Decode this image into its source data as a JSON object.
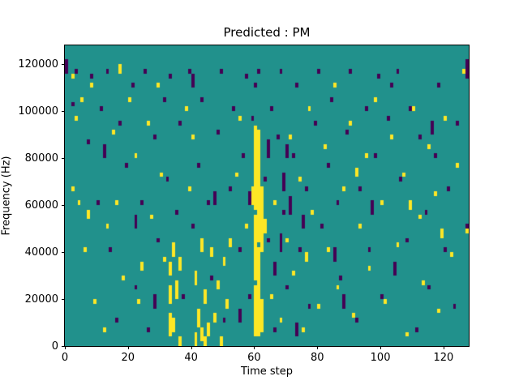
{
  "title": "Predicted : PM",
  "chart_data": {
    "type": "heatmap",
    "title": "Predicted : PM",
    "xlabel": "Time step",
    "ylabel": "Frequency (Hz)",
    "xlim": [
      0,
      128
    ],
    "ylim": [
      0,
      128000
    ],
    "xticks": [
      0,
      20,
      40,
      60,
      80,
      100,
      120
    ],
    "yticks": [
      0,
      20000,
      40000,
      60000,
      80000,
      100000,
      120000
    ],
    "time_steps": 128,
    "freq_bins": 64,
    "bin_height_hz": 2000,
    "grid": false,
    "legend": "none",
    "colors": {
      "background": "#21918c",
      "low": "#440154",
      "high": "#fde725",
      "figure_background": "#ffffff",
      "axes_edge": "#000000"
    },
    "value_levels": {
      "background": 1,
      "dark": 0,
      "yellow": 2
    },
    "yellow_runs": [
      [
        59,
        30,
        33
      ],
      [
        60,
        2,
        12
      ],
      [
        60,
        14,
        27
      ],
      [
        60,
        29,
        46
      ],
      [
        61,
        2,
        20
      ],
      [
        61,
        22,
        45
      ],
      [
        62,
        3,
        9
      ],
      [
        62,
        20,
        33
      ],
      [
        63,
        24,
        26
      ],
      [
        33,
        2,
        6
      ],
      [
        33,
        9,
        12
      ],
      [
        33,
        15,
        17
      ],
      [
        34,
        3,
        5
      ],
      [
        34,
        19,
        21
      ],
      [
        35,
        10,
        13
      ],
      [
        36,
        16,
        18
      ],
      [
        36,
        0,
        1
      ],
      [
        41,
        0,
        2
      ],
      [
        41,
        13,
        15
      ],
      [
        42,
        4,
        7
      ],
      [
        43,
        1,
        3
      ],
      [
        43,
        20,
        22
      ],
      [
        44,
        0,
        1
      ],
      [
        44,
        9,
        11
      ],
      [
        45,
        2,
        4
      ],
      [
        46,
        19,
        20
      ],
      [
        47,
        5,
        6
      ],
      [
        48,
        12,
        13
      ],
      [
        49,
        0,
        1
      ],
      [
        50,
        17,
        18
      ],
      [
        51,
        8,
        9
      ],
      [
        52,
        21,
        22
      ],
      [
        2,
        33,
        33
      ],
      [
        2,
        57,
        57
      ],
      [
        3,
        48,
        48
      ],
      [
        4,
        30,
        30
      ],
      [
        5,
        52,
        52
      ],
      [
        6,
        20,
        20
      ],
      [
        7,
        27,
        28
      ],
      [
        8,
        55,
        55
      ],
      [
        9,
        9,
        9
      ],
      [
        12,
        3,
        3
      ],
      [
        13,
        25,
        25
      ],
      [
        15,
        45,
        45
      ],
      [
        16,
        30,
        30
      ],
      [
        17,
        58,
        59
      ],
      [
        18,
        14,
        14
      ],
      [
        20,
        52,
        52
      ],
      [
        22,
        40,
        40
      ],
      [
        23,
        9,
        9
      ],
      [
        24,
        16,
        17
      ],
      [
        26,
        47,
        47
      ],
      [
        27,
        27,
        27
      ],
      [
        29,
        55,
        55
      ],
      [
        30,
        36,
        36
      ],
      [
        31,
        18,
        18
      ],
      [
        38,
        50,
        50
      ],
      [
        39,
        33,
        33
      ],
      [
        40,
        44,
        44
      ],
      [
        54,
        36,
        36
      ],
      [
        55,
        48,
        48
      ],
      [
        57,
        25,
        25
      ],
      [
        65,
        10,
        10
      ],
      [
        66,
        30,
        30
      ],
      [
        68,
        5,
        5
      ],
      [
        70,
        22,
        22
      ],
      [
        71,
        44,
        44
      ],
      [
        72,
        15,
        15
      ],
      [
        74,
        35,
        35
      ],
      [
        75,
        3,
        3
      ],
      [
        76,
        18,
        19
      ],
      [
        77,
        50,
        50
      ],
      [
        78,
        28,
        28
      ],
      [
        80,
        8,
        8
      ],
      [
        82,
        42,
        42
      ],
      [
        83,
        20,
        20
      ],
      [
        85,
        55,
        55
      ],
      [
        86,
        12,
        12
      ],
      [
        88,
        33,
        33
      ],
      [
        90,
        47,
        47
      ],
      [
        91,
        6,
        6
      ],
      [
        92,
        36,
        37
      ],
      [
        93,
        25,
        25
      ],
      [
        95,
        40,
        40
      ],
      [
        96,
        16,
        16
      ],
      [
        98,
        52,
        52
      ],
      [
        100,
        30,
        30
      ],
      [
        101,
        9,
        9
      ],
      [
        103,
        44,
        44
      ],
      [
        105,
        21,
        21
      ],
      [
        107,
        36,
        36
      ],
      [
        108,
        2,
        2
      ],
      [
        109,
        29,
        30
      ],
      [
        110,
        50,
        50
      ],
      [
        112,
        27,
        27
      ],
      [
        113,
        13,
        13
      ],
      [
        115,
        42,
        42
      ],
      [
        117,
        32,
        32
      ],
      [
        118,
        7,
        7
      ],
      [
        119,
        23,
        24
      ],
      [
        120,
        48,
        48
      ],
      [
        122,
        19,
        19
      ],
      [
        124,
        38,
        38
      ],
      [
        126,
        58,
        58
      ],
      [
        127,
        24,
        24
      ]
    ],
    "dark_runs": [
      [
        68,
        20,
        23
      ],
      [
        69,
        33,
        36
      ],
      [
        70,
        40,
        42
      ],
      [
        75,
        25,
        27
      ],
      [
        85,
        18,
        20
      ],
      [
        47,
        30,
        32
      ],
      [
        28,
        8,
        10
      ],
      [
        12,
        40,
        42
      ],
      [
        55,
        5,
        7
      ],
      [
        97,
        28,
        30
      ],
      [
        116,
        45,
        47
      ],
      [
        22,
        25,
        27
      ],
      [
        64,
        40,
        43
      ],
      [
        66,
        15,
        17
      ],
      [
        73,
        2,
        4
      ],
      [
        88,
        8,
        10
      ],
      [
        104,
        15,
        17
      ],
      [
        40,
        55,
        57
      ],
      [
        58,
        30,
        32
      ],
      [
        71,
        28,
        31
      ],
      [
        127,
        57,
        60
      ],
      [
        0,
        58,
        59
      ],
      [
        0,
        60,
        60
      ],
      [
        2,
        51,
        51
      ],
      [
        3,
        58,
        58
      ],
      [
        7,
        43,
        43
      ],
      [
        8,
        57,
        57
      ],
      [
        10,
        30,
        30
      ],
      [
        11,
        50,
        50
      ],
      [
        13,
        58,
        58
      ],
      [
        14,
        20,
        20
      ],
      [
        16,
        5,
        5
      ],
      [
        17,
        47,
        47
      ],
      [
        19,
        38,
        38
      ],
      [
        21,
        55,
        55
      ],
      [
        22,
        12,
        12
      ],
      [
        24,
        30,
        30
      ],
      [
        25,
        58,
        58
      ],
      [
        26,
        3,
        3
      ],
      [
        28,
        44,
        44
      ],
      [
        29,
        22,
        22
      ],
      [
        31,
        52,
        52
      ],
      [
        32,
        35,
        35
      ],
      [
        33,
        57,
        57
      ],
      [
        35,
        28,
        28
      ],
      [
        36,
        47,
        47
      ],
      [
        37,
        10,
        10
      ],
      [
        39,
        58,
        58
      ],
      [
        40,
        25,
        25
      ],
      [
        42,
        38,
        38
      ],
      [
        43,
        52,
        52
      ],
      [
        45,
        30,
        30
      ],
      [
        46,
        14,
        14
      ],
      [
        48,
        45,
        45
      ],
      [
        49,
        58,
        58
      ],
      [
        50,
        5,
        5
      ],
      [
        52,
        33,
        33
      ],
      [
        53,
        50,
        50
      ],
      [
        55,
        20,
        20
      ],
      [
        56,
        40,
        40
      ],
      [
        57,
        57,
        57
      ],
      [
        58,
        10,
        10
      ],
      [
        59,
        48,
        48
      ],
      [
        60,
        55,
        55
      ],
      [
        61,
        58,
        58
      ],
      [
        63,
        35,
        35
      ],
      [
        64,
        22,
        22
      ],
      [
        65,
        50,
        50
      ],
      [
        66,
        3,
        3
      ],
      [
        67,
        44,
        44
      ],
      [
        68,
        58,
        58
      ],
      [
        69,
        28,
        28
      ],
      [
        70,
        12,
        12
      ],
      [
        72,
        40,
        40
      ],
      [
        73,
        55,
        55
      ],
      [
        74,
        20,
        20
      ],
      [
        76,
        33,
        33
      ],
      [
        77,
        8,
        8
      ],
      [
        79,
        47,
        47
      ],
      [
        80,
        58,
        58
      ],
      [
        81,
        25,
        25
      ],
      [
        83,
        38,
        38
      ],
      [
        84,
        52,
        52
      ],
      [
        86,
        30,
        30
      ],
      [
        87,
        14,
        14
      ],
      [
        89,
        45,
        45
      ],
      [
        90,
        58,
        58
      ],
      [
        92,
        5,
        5
      ],
      [
        93,
        33,
        33
      ],
      [
        95,
        50,
        50
      ],
      [
        96,
        20,
        20
      ],
      [
        98,
        40,
        40
      ],
      [
        99,
        57,
        57
      ],
      [
        100,
        10,
        10
      ],
      [
        102,
        48,
        48
      ],
      [
        103,
        55,
        55
      ],
      [
        105,
        58,
        58
      ],
      [
        106,
        35,
        35
      ],
      [
        108,
        22,
        22
      ],
      [
        109,
        50,
        50
      ],
      [
        111,
        3,
        3
      ],
      [
        112,
        44,
        44
      ],
      [
        114,
        28,
        28
      ],
      [
        115,
        12,
        12
      ],
      [
        117,
        40,
        40
      ],
      [
        118,
        55,
        55
      ],
      [
        120,
        20,
        20
      ],
      [
        121,
        33,
        33
      ],
      [
        123,
        8,
        8
      ],
      [
        124,
        47,
        47
      ],
      [
        127,
        25,
        25
      ]
    ]
  }
}
